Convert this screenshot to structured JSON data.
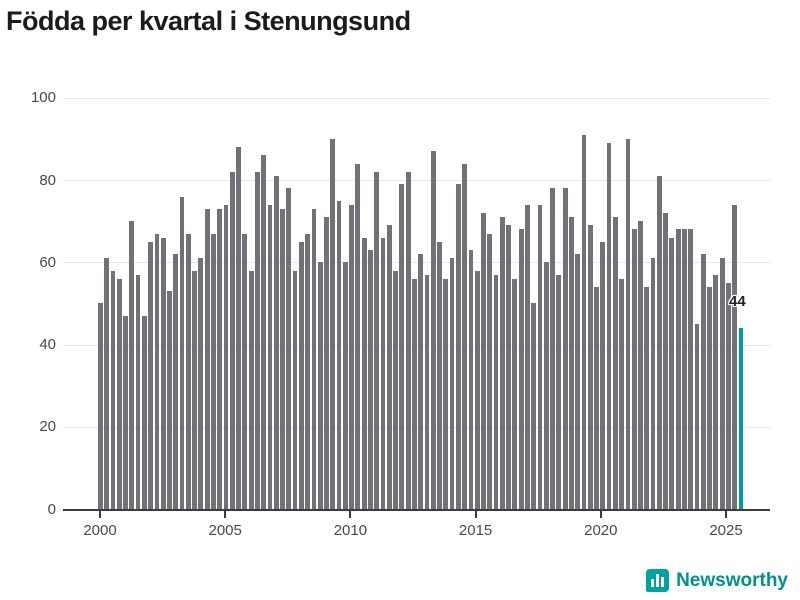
{
  "title": "Födda per kvartal i Stenungsund",
  "footer": {
    "brand": "Newsworthy"
  },
  "chart_data": {
    "type": "bar",
    "title": "Födda per kvartal i Stenungsund",
    "x_start": "2000-Q1",
    "x_end": "2025-Q3",
    "ylim": [
      0,
      100
    ],
    "grid": true,
    "y_ticks": [
      0,
      20,
      40,
      60,
      80,
      100
    ],
    "x_ticks": [
      "2000",
      "2005",
      "2010",
      "2015",
      "2020",
      "2025"
    ],
    "legend_position": "none",
    "highlight_last_bar": true,
    "last_value_label": "44",
    "colors": {
      "bar": "#737078",
      "highlight": "#009d9d",
      "axis": "#3d3d3d",
      "grid": "#e8e8e8",
      "tick_label": "#4a4a4a"
    },
    "values": [
      50,
      61,
      58,
      56,
      47,
      70,
      57,
      47,
      65,
      67,
      66,
      53,
      62,
      76,
      67,
      58,
      61,
      73,
      67,
      73,
      74,
      82,
      88,
      67,
      58,
      82,
      86,
      74,
      81,
      73,
      78,
      58,
      65,
      67,
      73,
      60,
      71,
      90,
      75,
      60,
      74,
      84,
      66,
      63,
      82,
      66,
      69,
      58,
      79,
      82,
      56,
      62,
      57,
      87,
      65,
      56,
      61,
      79,
      84,
      63,
      58,
      72,
      67,
      57,
      71,
      69,
      56,
      68,
      74,
      50,
      74,
      60,
      78,
      57,
      78,
      71,
      62,
      91,
      69,
      54,
      65,
      89,
      71,
      56,
      90,
      68,
      70,
      54,
      61,
      81,
      72,
      66,
      68,
      68,
      68,
      45,
      62,
      54,
      57,
      61,
      55,
      74,
      44
    ]
  }
}
